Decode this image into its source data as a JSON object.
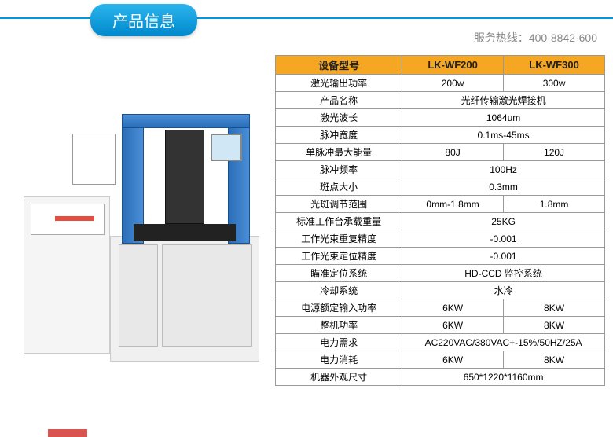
{
  "header": {
    "title": "产品信息",
    "hotline_label": "服务热线：",
    "hotline_number": "400-8842-600"
  },
  "table": {
    "header_bg": "#f5a623",
    "border_color": "#999999",
    "columns": [
      {
        "label": "设备型号"
      },
      {
        "label": "LK-WF200"
      },
      {
        "label": "LK-WF300"
      }
    ],
    "rows": [
      {
        "name": "激光输出功率",
        "v1": "200w",
        "v2": "300w",
        "span": false
      },
      {
        "name": "产品名称",
        "merged": "光纤传输激光焊接机",
        "span": true
      },
      {
        "name": "激光波长",
        "merged": "1064um",
        "span": true
      },
      {
        "name": "脉冲宽度",
        "merged": "0.1ms-45ms",
        "span": true
      },
      {
        "name": "单脉冲最大能量",
        "v1": "80J",
        "v2": "120J",
        "span": false
      },
      {
        "name": "脉冲频率",
        "merged": "100Hz",
        "span": true
      },
      {
        "name": "斑点大小",
        "merged": "0.3mm",
        "span": true
      },
      {
        "name": "光斑调节范围",
        "v1": "0mm-1.8mm",
        "v2": "1.8mm",
        "span": false
      },
      {
        "name": "标准工作台承载重量",
        "merged": "25KG",
        "span": true
      },
      {
        "name": "工作光束重复精度",
        "merged": "-0.001",
        "span": true
      },
      {
        "name": "工作光束定位精度",
        "merged": "-0.001",
        "span": true
      },
      {
        "name": "瞄准定位系统",
        "merged": "HD-CCD 监控系统",
        "span": true
      },
      {
        "name": "冷却系统",
        "merged": "水冷",
        "span": true
      },
      {
        "name": "电源额定输入功率",
        "v1": "6KW",
        "v2": "8KW",
        "span": false
      },
      {
        "name": "整机功率",
        "v1": "6KW",
        "v2": "8KW",
        "span": false
      },
      {
        "name": "电力需求",
        "merged": "AC220VAC/380VAC+-15%/50HZ/25A",
        "span": true
      },
      {
        "name": "电力消耗",
        "v1": "6KW",
        "v2": "8KW",
        "span": false
      },
      {
        "name": "机器外观尺寸",
        "merged": "650*1220*1160mm",
        "span": true
      }
    ]
  },
  "colors": {
    "header_gradient_top": "#2bb5ed",
    "header_gradient_bottom": "#0088cc",
    "header_line": "#0099dd",
    "gantry_blue": "#2a6eb8",
    "machine_gray": "#f0f0f0"
  }
}
